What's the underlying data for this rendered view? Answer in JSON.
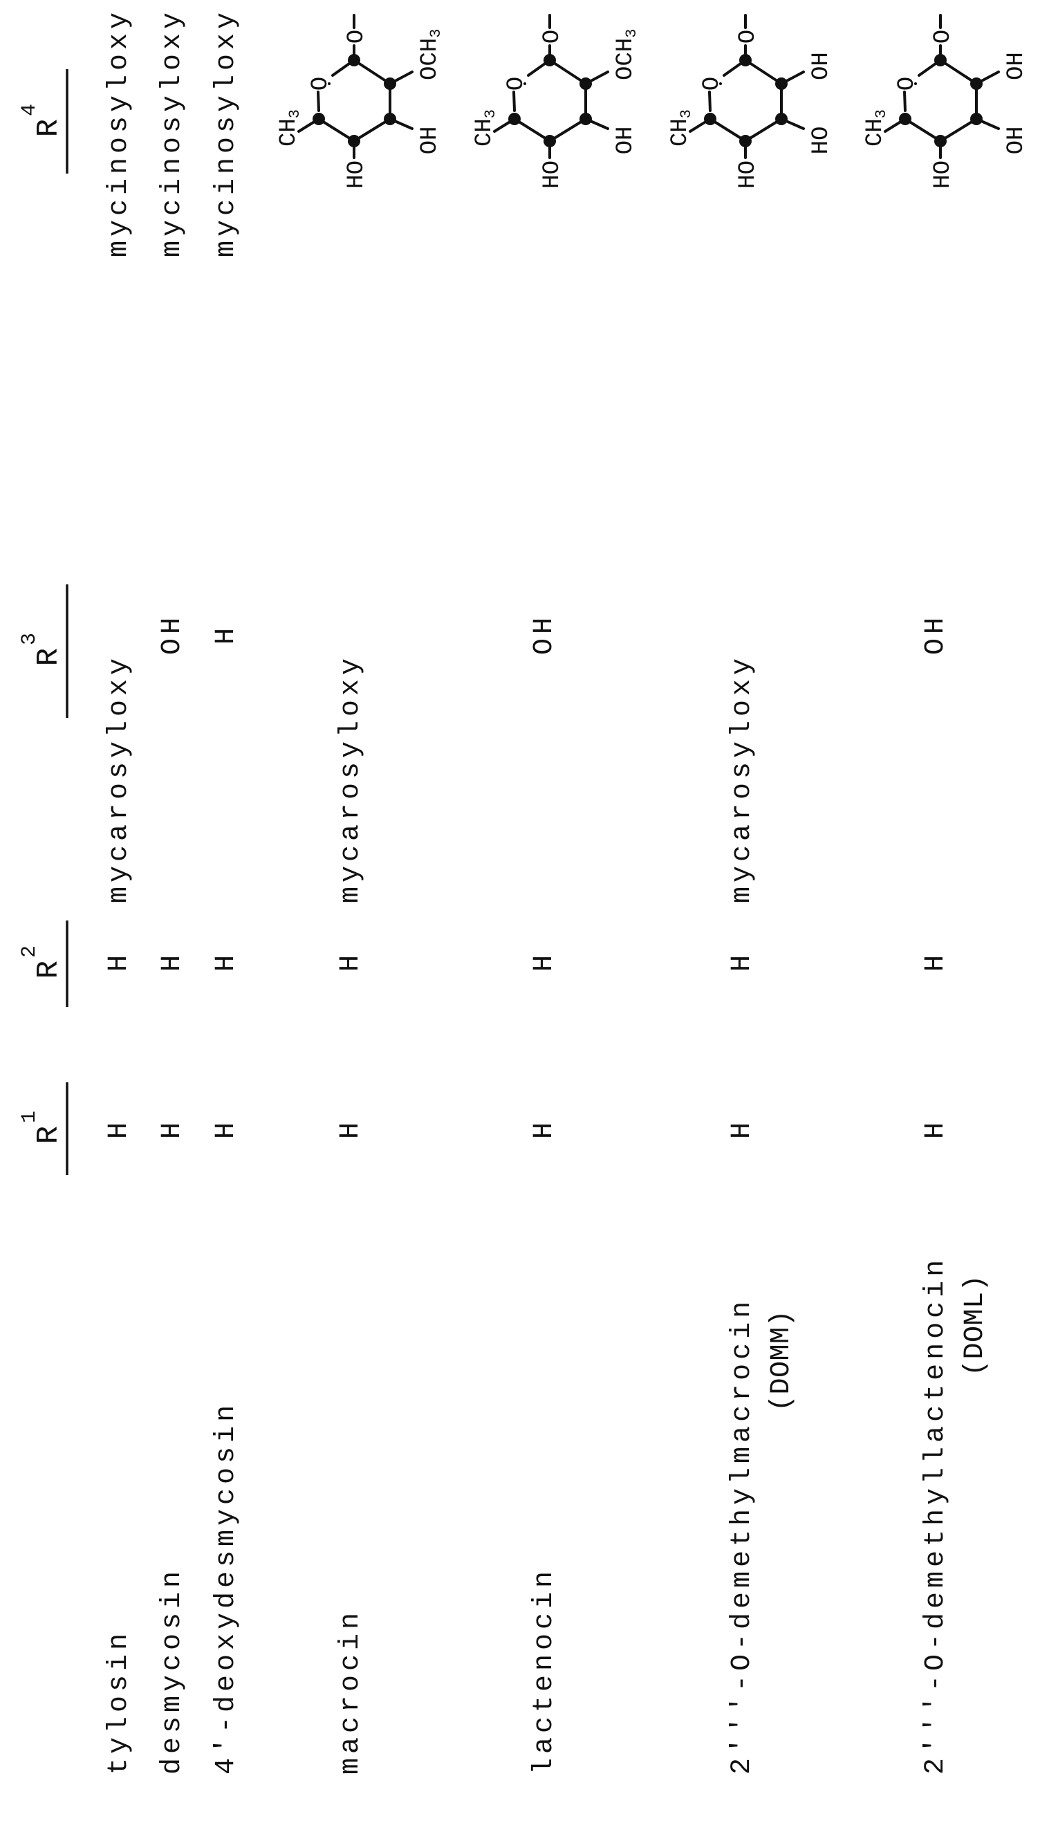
{
  "headers": [
    {
      "label": "R",
      "sup": "1"
    },
    {
      "label": "R",
      "sup": "2"
    },
    {
      "label": "R",
      "sup": "3"
    },
    {
      "label": "R",
      "sup": "4"
    }
  ],
  "rows": [
    {
      "name": "tylosin",
      "r1": "H",
      "r2": "H",
      "r3": "mycarosyloxy",
      "r4": "mycinosyloxy"
    },
    {
      "name": "desmycosin",
      "r1": "H",
      "r2": "H",
      "r3": "OH",
      "r4": "mycinosyloxy"
    },
    {
      "name": "4'-deoxydesmycosin",
      "r1": "H",
      "r2": "H",
      "r3": "H",
      "r4": "mycinosyloxy"
    },
    {
      "name": "macrocin",
      "r1": "H",
      "r2": "H",
      "r3": "mycarosyloxy",
      "r4_structure": {
        "link": "O",
        "ring_o": "O",
        "ch3": "CH",
        "ch3_sub": "3",
        "ho": "HO",
        "sub_lower": "OH",
        "sub_upper": "OCH",
        "sub_upper_sub": "3"
      }
    },
    {
      "name": "lactenocin",
      "r1": "H",
      "r2": "H",
      "r3": "OH",
      "r4_structure": {
        "link": "O",
        "ring_o": "O",
        "ch3": "CH",
        "ch3_sub": "3",
        "ho": "HO",
        "sub_lower": "OH",
        "sub_upper": "OCH",
        "sub_upper_sub": "3"
      }
    },
    {
      "name": "2'''-O-demethylmacrocin",
      "note": "(DOMM)",
      "r1": "H",
      "r2": "H",
      "r3": "mycarosyloxy",
      "r4_structure": {
        "link": "O",
        "ring_o": "O",
        "ch3": "CH",
        "ch3_sub": "3",
        "ho": "HO",
        "sub_lower": "HO",
        "sub_upper": "OH"
      }
    },
    {
      "name": "2'''-O-demethyllactenocin",
      "note": "(DOML)",
      "r1": "H",
      "r2": "H",
      "r3": "OH",
      "r4_structure": {
        "link": "O",
        "ring_o": "O",
        "ch3": "CH",
        "ch3_sub": "3",
        "ho": "HO",
        "sub_lower": "OH",
        "sub_upper": "OH"
      }
    }
  ]
}
